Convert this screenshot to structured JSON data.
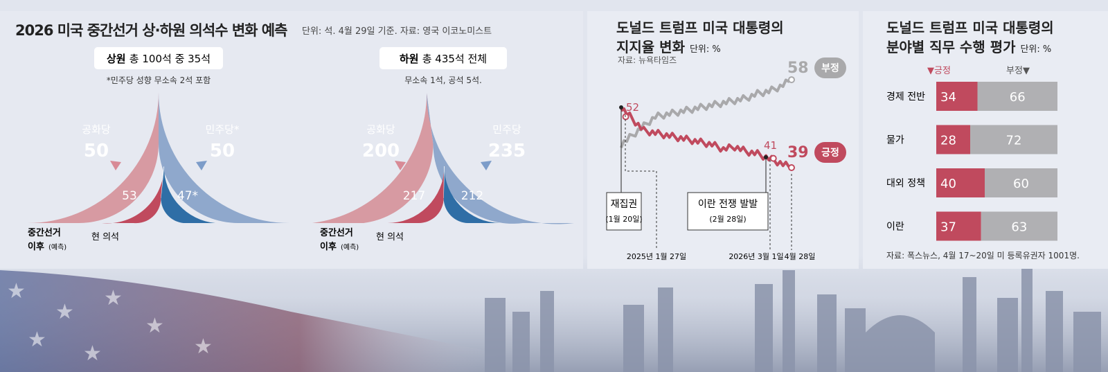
{
  "colors": {
    "rep_light": "#d79aa2",
    "dem_light": "#8fa8cc",
    "rep": "#c04a5e",
    "dem": "#2f6ea6",
    "positive": "#c04a5e",
    "negative": "#a9a9ab",
    "bg": "#e1e5ee"
  },
  "seats": {
    "title": "2026 미국 중간선거 상·하원 의석수 변화 예측",
    "meta": "단위: 석. 4월 29일 기준. 자료: 영국 이코노미스트",
    "senate": {
      "label_bold": "상원",
      "label_rest": "총 100석 중 35석",
      "note": "*민주당 성향 무소속 2석 포함",
      "rep_name": "공화당",
      "rep_forecast": "50",
      "dem_name": "민주당*",
      "dem_forecast": "50",
      "rep_current": "53",
      "dem_current": "47*",
      "current_label": "현 의석",
      "forecast_label1": "중간선거",
      "forecast_label2": "이후",
      "forecast_label3": "(예측)"
    },
    "house": {
      "label_bold": "하원",
      "label_rest": "총 435석 전체",
      "note": "무소속 1석, 공석 5석.",
      "rep_name": "공화당",
      "rep_forecast": "200",
      "dem_name": "민주당",
      "dem_forecast": "235",
      "rep_current": "217",
      "dem_current": "212",
      "current_label": "현 의석",
      "forecast_label1": "중간선거",
      "forecast_label2": "이후",
      "forecast_label3": "(예측)"
    }
  },
  "chart_data": [
    {
      "type": "pie",
      "title": "상원 의석",
      "categories": [
        "공화당 현 의석",
        "민주당 현 의석",
        "공화당 예측",
        "민주당 예측"
      ],
      "values": [
        53,
        47,
        50,
        50
      ]
    },
    {
      "type": "pie",
      "title": "하원 의석",
      "categories": [
        "공화당 현 의석",
        "민주당 현 의석",
        "공화당 예측",
        "민주당 예측"
      ],
      "values": [
        217,
        212,
        200,
        235
      ]
    },
    {
      "type": "line",
      "title": "도널드 트럼프 미국 대통령의 지지율 변화",
      "title1": "도널드 트럼프 미국 대통령의",
      "title2": "지지율 변화",
      "unit": "단위: %",
      "source": "자료: 뉴욕타임즈",
      "x": [
        0,
        1,
        2,
        3,
        4,
        5,
        6,
        7,
        8,
        9,
        10,
        11,
        12,
        13,
        14,
        15
      ],
      "x_ticks": [
        "2025년 1월 27일",
        "2026년 3월 1일",
        "4월 28일"
      ],
      "series": [
        {
          "name": "부정",
          "values": [
            44,
            46,
            48,
            50,
            50.5,
            51,
            51.5,
            52,
            52.5,
            53,
            53.5,
            54,
            55,
            55.5,
            56.5,
            58
          ],
          "end_label": "58"
        },
        {
          "name": "긍정",
          "values": [
            52,
            49.5,
            47,
            46.5,
            46,
            45.5,
            45,
            44.5,
            44,
            43,
            43.5,
            42.5,
            42,
            41,
            40,
            39
          ],
          "start_label": "52",
          "mid_label": "41",
          "end_label": "39"
        }
      ],
      "annotations": [
        {
          "title": "재집권",
          "date": "(1월 20일)"
        },
        {
          "title": "이란 전쟁 발발",
          "date": "(2월 28일)"
        }
      ]
    },
    {
      "type": "bar",
      "title": "도널드 트럼프 미국 대통령의 분야별 직무 수행 평가",
      "title1": "도널드 트럼프 미국 대통령의",
      "title2": "분야별 직무 수행 평가",
      "unit": "단위: %",
      "legend": [
        "▼긍정",
        "부정▼"
      ],
      "categories": [
        "경제 전반",
        "물가",
        "대외 정책",
        "이란"
      ],
      "series": [
        {
          "name": "긍정",
          "values": [
            34,
            28,
            40,
            37
          ]
        },
        {
          "name": "부정",
          "values": [
            66,
            72,
            60,
            63
          ]
        }
      ],
      "source": "자료: 폭스뉴스, 4월 17~20일 미 등록유권자 1001명."
    }
  ]
}
